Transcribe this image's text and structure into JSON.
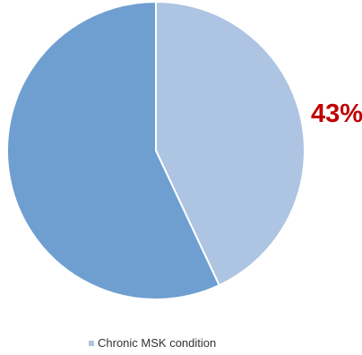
{
  "chart_data": {
    "type": "pie",
    "slices": [
      {
        "name": "Chronic MSK condition",
        "value": 43,
        "color": "#adc4e2"
      },
      {
        "name": "",
        "value": 57,
        "color": "#6e9fd0"
      }
    ],
    "data_label": "43%",
    "data_label_color": "#c00000",
    "legend": {
      "position": "bottom",
      "entries": [
        "Chronic MSK condition"
      ]
    },
    "start_angle_deg": 0,
    "direction": "clockwise",
    "slice_border_color": "#ffffff"
  }
}
